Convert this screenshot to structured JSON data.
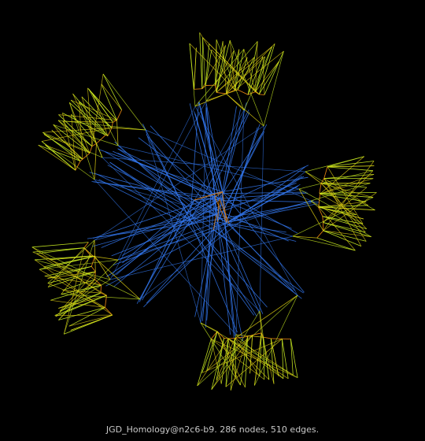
{
  "caption": "JGD_Homology@n2c6-b9. 286 nodes, 510 edges.",
  "graph": {
    "node_count": 286,
    "edge_count": 510,
    "background": "#000000",
    "edge_colors": {
      "outer": "#ccee22",
      "mid": "#ddcc11",
      "inner": "#ee8811",
      "core": "#3377ee"
    },
    "layout": "five radial clusters around a central hub"
  }
}
